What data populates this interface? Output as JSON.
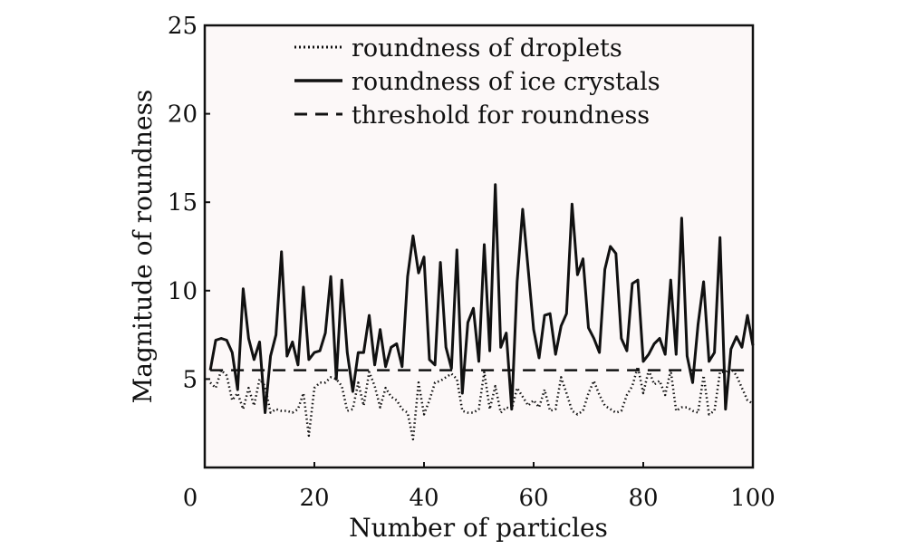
{
  "chart_data": {
    "type": "line",
    "title": "",
    "xlabel": "Number of particles",
    "ylabel": "Magnitude of roundness",
    "xlim": [
      0,
      100
    ],
    "ylim": [
      0,
      25
    ],
    "x_ticks": [
      "0",
      "20",
      "40",
      "60",
      "80",
      "100"
    ],
    "y_ticks": [
      "5",
      "10",
      "15",
      "20",
      "25"
    ],
    "grid": false,
    "legend_position": "top-center",
    "background_color": "#fcf8f8",
    "line_color": "#111111",
    "series": [
      {
        "name": "roundness of droplets",
        "style": "dotted",
        "x": [
          1,
          2,
          3,
          4,
          5,
          6,
          7,
          8,
          9,
          10,
          11,
          12,
          13,
          14,
          15,
          16,
          17,
          18,
          19,
          20,
          21,
          22,
          23,
          24,
          25,
          26,
          27,
          28,
          29,
          30,
          31,
          32,
          33,
          34,
          35,
          36,
          37,
          38,
          39,
          40,
          41,
          42,
          43,
          44,
          45,
          46,
          47,
          48,
          49,
          50,
          51,
          52,
          53,
          54,
          55,
          56,
          57,
          58,
          59,
          60,
          61,
          62,
          63,
          64,
          65,
          66,
          67,
          68,
          69,
          70,
          71,
          72,
          73,
          74,
          75,
          76,
          77,
          78,
          79,
          80,
          81,
          82,
          83,
          84,
          85,
          86,
          87,
          88,
          89,
          90,
          91,
          92,
          93,
          94,
          95,
          96,
          97,
          98,
          99,
          100
        ],
        "values": [
          4.8,
          4.5,
          5.5,
          5.2,
          3.8,
          4.2,
          3.3,
          4.5,
          3.5,
          5.0,
          4.6,
          3.1,
          3.3,
          3.2,
          3.2,
          3.1,
          3.3,
          4.2,
          1.8,
          4.5,
          4.8,
          4.8,
          5.1,
          5.0,
          4.6,
          3.2,
          3.3,
          4.8,
          3.5,
          5.4,
          4.6,
          3.4,
          4.5,
          4.0,
          3.8,
          3.3,
          3.1,
          1.6,
          4.8,
          3.0,
          3.8,
          4.8,
          4.9,
          5.1,
          5.3,
          5.0,
          3.2,
          3.1,
          3.1,
          3.3,
          5.4,
          3.3,
          4.6,
          3.1,
          3.4,
          3.3,
          4.5,
          4.0,
          3.5,
          3.8,
          3.4,
          4.4,
          3.2,
          3.3,
          5.1,
          4.2,
          3.2,
          3.0,
          3.2,
          4.2,
          4.9,
          4.1,
          3.5,
          3.3,
          3.1,
          3.2,
          4.1,
          4.6,
          5.7,
          4.2,
          5.5,
          4.7,
          4.9,
          4.1,
          5.5,
          3.2,
          3.4,
          3.4,
          3.2,
          3.1,
          5.2,
          3.0,
          3.2,
          5.4,
          5.4,
          5.6,
          5.2,
          4.5,
          3.8,
          3.6
        ]
      },
      {
        "name": "roundness of ice crystals",
        "style": "solid",
        "x": [
          1,
          2,
          3,
          4,
          5,
          6,
          7,
          8,
          9,
          10,
          11,
          12,
          13,
          14,
          15,
          16,
          17,
          18,
          19,
          20,
          21,
          22,
          23,
          24,
          25,
          26,
          27,
          28,
          29,
          30,
          31,
          32,
          33,
          34,
          35,
          36,
          37,
          38,
          39,
          40,
          41,
          42,
          43,
          44,
          45,
          46,
          47,
          48,
          49,
          50,
          51,
          52,
          53,
          54,
          55,
          56,
          57,
          58,
          59,
          60,
          61,
          62,
          63,
          64,
          65,
          66,
          67,
          68,
          69,
          70,
          71,
          72,
          73,
          74,
          75,
          76,
          77,
          78,
          79,
          80,
          81,
          82,
          83,
          84,
          85,
          86,
          87,
          88,
          89,
          90,
          91,
          92,
          93,
          94,
          95,
          96,
          97,
          98,
          99,
          100
        ],
        "values": [
          5.5,
          7.2,
          7.3,
          7.2,
          6.5,
          4.4,
          10.1,
          7.3,
          6.1,
          7.1,
          3.1,
          6.3,
          7.5,
          12.2,
          6.3,
          7.1,
          5.8,
          10.2,
          6.1,
          6.5,
          6.6,
          7.6,
          10.8,
          5.0,
          10.6,
          6.5,
          4.3,
          6.5,
          6.5,
          8.6,
          5.8,
          7.8,
          5.7,
          6.8,
          7.0,
          5.7,
          10.8,
          13.1,
          11.0,
          11.9,
          6.1,
          5.8,
          11.6,
          6.8,
          5.6,
          12.3,
          4.2,
          8.2,
          9.0,
          6.0,
          12.6,
          6.6,
          16.0,
          6.8,
          7.6,
          3.3,
          10.5,
          14.6,
          11.2,
          7.8,
          6.2,
          8.6,
          8.7,
          6.4,
          8.0,
          8.7,
          14.9,
          10.9,
          11.8,
          7.9,
          7.3,
          6.5,
          11.2,
          12.5,
          12.1,
          7.3,
          6.6,
          10.4,
          10.6,
          6.0,
          6.4,
          7.0,
          7.3,
          6.4,
          10.6,
          6.4,
          14.1,
          6.3,
          4.8,
          8.1,
          10.5,
          6.0,
          6.5,
          13.0,
          3.3,
          6.7,
          7.4,
          6.8,
          8.6,
          6.9
        ]
      },
      {
        "name": "threshold for roundness",
        "style": "dashed",
        "x": [
          1,
          100
        ],
        "values": [
          5.5,
          5.5
        ]
      }
    ]
  }
}
